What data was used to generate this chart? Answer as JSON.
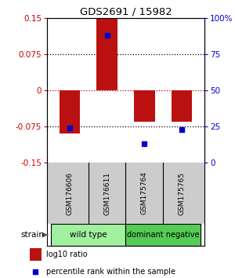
{
  "title": "GDS2691 / 15982",
  "samples": [
    "GSM176606",
    "GSM176611",
    "GSM175764",
    "GSM175765"
  ],
  "log10_ratio": [
    -0.09,
    0.148,
    -0.065,
    -0.065
  ],
  "percentile_rank": [
    24,
    88,
    13,
    23
  ],
  "group_wt_label": "wild type",
  "group_dn_label": "dominant negative",
  "group_wt_color": "#a0f0a0",
  "group_dn_color": "#55cc55",
  "group_label": "strain",
  "ylim_left": [
    -0.15,
    0.15
  ],
  "ylim_right": [
    0,
    100
  ],
  "yticks_left": [
    -0.15,
    -0.075,
    0,
    0.075,
    0.15
  ],
  "ytick_labels_left": [
    "-0.15",
    "-0.075",
    "0",
    "0.075",
    "0.15"
  ],
  "yticks_right": [
    0,
    25,
    50,
    75,
    100
  ],
  "ytick_labels_right": [
    "0",
    "25",
    "50",
    "75",
    "100%"
  ],
  "bar_color": "#bb1111",
  "dot_color": "#0000cc",
  "background_color": "#ffffff",
  "zero_line_color": "#cc0000",
  "hline_color": "#000000",
  "bar_width": 0.55,
  "sample_bg": "#cccccc",
  "legend_red_label": "log10 ratio",
  "legend_blue_label": "percentile rank within the sample"
}
